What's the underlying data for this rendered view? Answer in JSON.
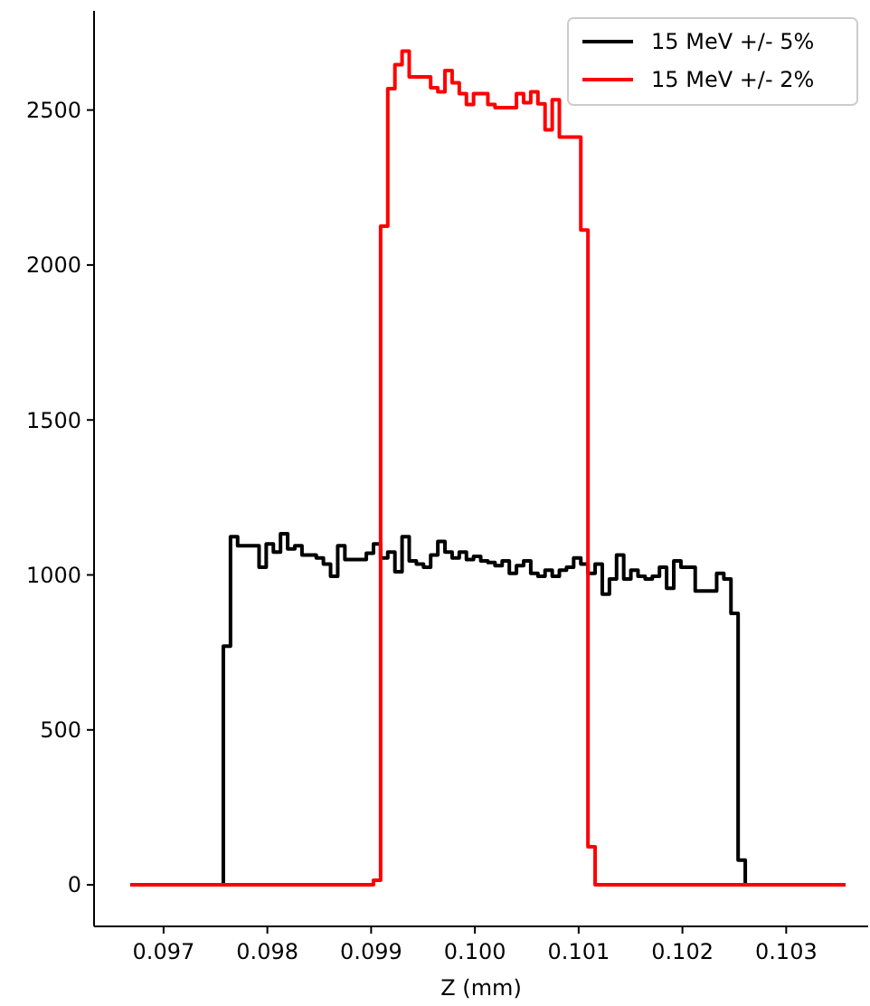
{
  "chart_data": {
    "type": "histogram",
    "xlabel": "Z (mm)",
    "bins": [
      0.09668,
      0.0967489,
      0.0968178,
      0.0968867,
      0.0969556,
      0.0970245,
      0.0970934,
      0.0971623,
      0.0972312,
      0.0973001,
      0.097369,
      0.0974379,
      0.0975068,
      0.0975757,
      0.0976446,
      0.0977135,
      0.0977824,
      0.0978513,
      0.0979202,
      0.0979891,
      0.098058,
      0.0981269,
      0.0981958,
      0.0982647,
      0.0983336,
      0.0984025,
      0.0984714,
      0.0985403,
      0.0986092,
      0.0986781,
      0.098747,
      0.0988159,
      0.0988848,
      0.0989537,
      0.0990226,
      0.0990915,
      0.0991604,
      0.0992293,
      0.0992982,
      0.0993671,
      0.099436,
      0.0995049,
      0.0995738,
      0.0996427,
      0.0997116,
      0.0997805,
      0.0998494,
      0.0999183,
      0.0999872,
      0.1000561,
      0.100125,
      0.1001939,
      0.1002628,
      0.1003317,
      0.1004006,
      0.1004695,
      0.1005384,
      0.1006073,
      0.1006762,
      0.1007451,
      0.100814,
      0.1008829,
      0.1009518,
      0.1010207,
      0.1010896,
      0.1011585,
      0.1012274,
      0.1012963,
      0.1013652,
      0.1014341,
      0.101503,
      0.1015719,
      0.1016408,
      0.1017097,
      0.1017786,
      0.1018475,
      0.1019164,
      0.1019853,
      0.1020542,
      0.1021231,
      0.102192,
      0.1022609,
      0.1023298,
      0.1023987,
      0.1024676,
      0.1025365,
      0.1026054,
      0.1026743,
      0.1027432,
      0.1028121,
      0.102881,
      0.1029499,
      0.1030188,
      0.1030877,
      0.1031566,
      0.1032255,
      0.1032944,
      0.1033633,
      0.1034322,
      0.1035011,
      0.10357
    ],
    "series": [
      {
        "name": "15 MeV +/- 5%",
        "color": "#000000",
        "values": [
          0,
          0,
          0,
          0,
          0,
          0,
          0,
          0,
          0,
          0,
          0,
          0,
          0,
          770,
          1123,
          1094,
          1094,
          1094,
          1025,
          1100,
          1074,
          1133,
          1084,
          1094,
          1064,
          1064,
          1055,
          1035,
          996,
          1094,
          1050,
          1050,
          1050,
          1070,
          1100,
          1055,
          1074,
          1010,
          1123,
          1045,
          1035,
          1025,
          1064,
          1108,
          1074,
          1055,
          1074,
          1050,
          1060,
          1045,
          1040,
          1030,
          1045,
          1005,
          1030,
          1045,
          1005,
          996,
          1015,
          996,
          1015,
          1025,
          1055,
          1035,
          1005,
          1035,
          938,
          987,
          1064,
          987,
          1015,
          996,
          987,
          996,
          1025,
          957,
          1045,
          1025,
          1025,
          948,
          948,
          948,
          1005,
          987,
          876,
          80,
          0,
          0,
          0,
          0,
          0,
          0,
          0,
          0,
          0,
          0,
          0,
          0,
          0,
          0
        ]
      },
      {
        "name": "15 MeV +/- 2%",
        "color": "#ff0000",
        "values": [
          0,
          0,
          0,
          0,
          0,
          0,
          0,
          0,
          0,
          0,
          0,
          0,
          0,
          0,
          0,
          0,
          0,
          0,
          0,
          0,
          0,
          0,
          0,
          0,
          0,
          0,
          0,
          0,
          0,
          0,
          0,
          0,
          0,
          0,
          15,
          2125,
          2569,
          2646,
          2690,
          2607,
          2607,
          2607,
          2572,
          2559,
          2627,
          2588,
          2553,
          2518,
          2553,
          2553,
          2518,
          2508,
          2508,
          2508,
          2553,
          2524,
          2559,
          2520,
          2436,
          2533,
          2413,
          2413,
          2413,
          2113,
          123,
          0,
          0,
          0,
          0,
          0,
          0,
          0,
          0,
          0,
          0,
          0,
          0,
          0,
          0,
          0,
          0,
          0,
          0,
          0,
          0,
          0,
          0,
          0,
          0,
          0,
          0,
          0,
          0,
          0,
          0,
          0,
          0,
          0,
          0,
          0
        ]
      }
    ],
    "xlim": [
      0.09633,
      0.10379
    ],
    "ylim": [
      -134,
      2820
    ],
    "xticks": [
      0.097,
      0.098,
      0.099,
      {
        "value": 0.1,
        "label": "0.100"
      },
      0.101,
      0.102,
      0.103
    ],
    "yticks": [
      0,
      500,
      1000,
      1500,
      2000,
      2500
    ],
    "legend": "top right"
  }
}
